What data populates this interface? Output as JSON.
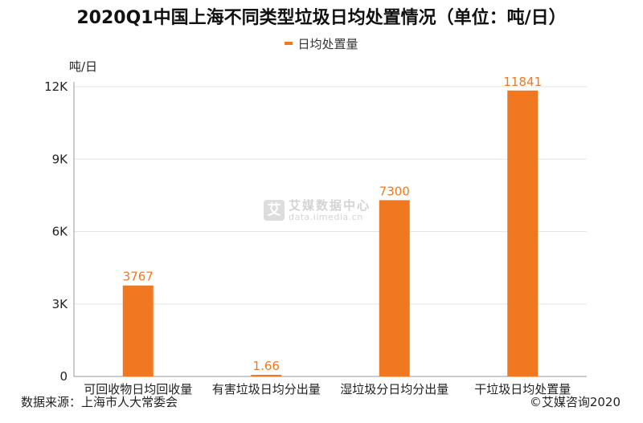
{
  "chart_data": {
    "type": "bar",
    "title": "2020Q1中国上海不同类型垃圾日均处置情况（单位：吨/日）",
    "ylabel": "吨/日",
    "xlabel": "",
    "categories": [
      "可回收物日均回收量",
      "有害垃圾日均分出量",
      "湿垃圾分日均分出量",
      "干垃圾日均处置量"
    ],
    "series": [
      {
        "name": "日均处置量",
        "values": [
          3767,
          1.66,
          7300,
          11841
        ]
      }
    ],
    "data_labels": [
      "3767",
      "1.66",
      "7300",
      "11841"
    ],
    "ylim": [
      0,
      12000
    ],
    "yticks": [
      0,
      3000,
      6000,
      9000,
      12000
    ],
    "ytick_labels": [
      "0",
      "3K",
      "6K",
      "9K",
      "12K"
    ],
    "legend_position": "top-center",
    "grid": true,
    "bar_color": "#f07820"
  },
  "watermark": {
    "cn": "艾媒数据中心",
    "en": "data.iimedia.cn",
    "logo_char": "艾"
  },
  "footer": {
    "source": "数据来源：上海市人大常委会",
    "copyright": "©艾媒咨询2020"
  }
}
